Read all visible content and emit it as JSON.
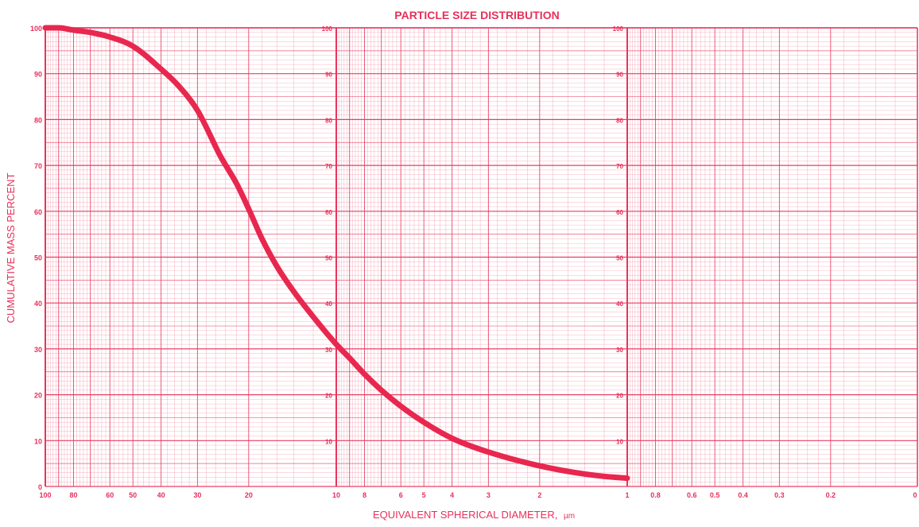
{
  "chart_data": {
    "type": "line",
    "title": "PARTICLE SIZE DISTRIBUTION",
    "xlabel": "EQUIVALENT SPHERICAL DIAMETER,",
    "xunit": "µm",
    "ylabel": "CUMULATIVE MASS PERCENT",
    "xscale": "log",
    "xaxis_reversed": true,
    "xlim": [
      100,
      0.1
    ],
    "ylim": [
      0,
      100
    ],
    "grid": true,
    "x_tick_labels": [
      "100",
      "80",
      "60",
      "50",
      "40",
      "30",
      "20",
      "10",
      "8",
      "6",
      "5",
      "4",
      "3",
      "2",
      "1",
      "0.8",
      "0.6",
      "0.5",
      "0.4",
      "0.3",
      "0.2",
      "0"
    ],
    "y_tick_labels": [
      "0",
      "10",
      "20",
      "30",
      "40",
      "50",
      "60",
      "70",
      "80",
      "90",
      "100"
    ],
    "inner_y_tick_labels": [
      "10",
      "20",
      "30",
      "40",
      "50",
      "60",
      "70",
      "80",
      "90",
      "100"
    ],
    "series": [
      {
        "x": [
          100,
          90,
          80,
          70,
          60,
          50,
          40,
          35,
          30,
          25,
          22,
          20,
          18,
          16,
          14,
          12,
          10,
          9,
          8,
          7,
          6,
          5,
          4,
          3,
          2,
          1.5,
          1.2,
          1
        ],
        "y": [
          100,
          100,
          99.5,
          99,
          98,
          96,
          91,
          87.5,
          82,
          72,
          66,
          60.5,
          54,
          48,
          42.5,
          37,
          31,
          28,
          24.5,
          21,
          17.5,
          14,
          10.5,
          7.5,
          4.5,
          3,
          2.2,
          1.8
        ]
      }
    ]
  },
  "colors": {
    "grid": "#e8345c",
    "curve": "#e8274f",
    "text": "#e8305a"
  }
}
